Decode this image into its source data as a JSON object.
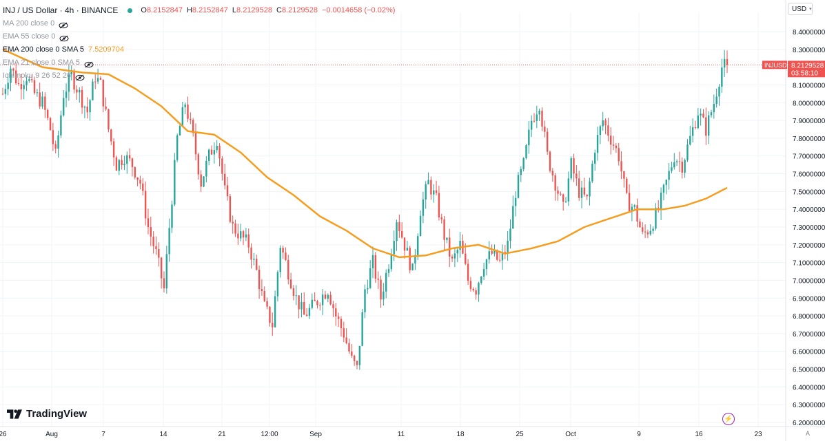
{
  "header": {
    "title": "INJ / US Dollar · 4h · BINANCE",
    "ohlc": [
      {
        "label": "O",
        "value": "8.2152847"
      },
      {
        "label": "H",
        "value": "8.2152847"
      },
      {
        "label": "L",
        "value": "8.2129528"
      },
      {
        "label": "C",
        "value": "8.2129528"
      }
    ],
    "change": "−0.0014658 (−0.02%)"
  },
  "indicators": [
    {
      "name": "MA 200 close 0",
      "value": "",
      "hidden": true
    },
    {
      "name": "EMA 55 close 0",
      "value": "",
      "hidden": true
    },
    {
      "name": "EMA 200 close 0 SMA 5",
      "value": "7.5209704",
      "hidden": false
    },
    {
      "name": "EMA 21 close 0 SMA 5",
      "value": "",
      "hidden": true
    },
    {
      "name": "Ichimoku 9 26 52 26",
      "value": "",
      "hidden": true
    }
  ],
  "currency_button": "USD",
  "brand": "TradingView",
  "auto_label": "A",
  "price_tag": {
    "symbol": "INJUSD",
    "price": "8.2129528",
    "countdown": "03:58:10"
  },
  "colors": {
    "up": "#26a69a",
    "down": "#ef5350",
    "ema": "#f59d1e",
    "tag": "#ef5350"
  },
  "chart_data": {
    "type": "candlestick",
    "ylim": [
      6.2,
      8.45
    ],
    "y_ticks": [
      "8.4000000",
      "8.3000000",
      "8.2000000",
      "8.1000000",
      "8.0000000",
      "7.9000000",
      "7.8000000",
      "7.7000000",
      "7.6000000",
      "7.5000000",
      "7.4000000",
      "7.3000000",
      "7.2000000",
      "7.1000000",
      "7.0000000",
      "6.9000000",
      "6.8000000",
      "6.7000000",
      "6.6000000",
      "6.5000000",
      "6.4000000",
      "6.3000000",
      "6.2000000"
    ],
    "x_ticks": [
      "26",
      "Aug",
      "7",
      "14",
      "21",
      "12:00",
      "Sep",
      "11",
      "18",
      "25",
      "Oct",
      "9",
      "16",
      "23"
    ],
    "last_price": 8.2129528,
    "price_path": [
      [
        0,
        8.05
      ],
      [
        3,
        8.2
      ],
      [
        6,
        8.1
      ],
      [
        9,
        8.15
      ],
      [
        12,
        8.05
      ],
      [
        15,
        8.0
      ],
      [
        18,
        7.85
      ],
      [
        20,
        7.7
      ],
      [
        23,
        8.05
      ],
      [
        26,
        8.15
      ],
      [
        29,
        8.05
      ],
      [
        32,
        7.95
      ],
      [
        35,
        8.15
      ],
      [
        37,
        8.1
      ],
      [
        40,
        7.85
      ],
      [
        43,
        7.65
      ],
      [
        46,
        7.7
      ],
      [
        49,
        7.65
      ],
      [
        52,
        7.55
      ],
      [
        55,
        7.3
      ],
      [
        58,
        7.15
      ],
      [
        61,
        6.95
      ],
      [
        63,
        7.3
      ],
      [
        66,
        7.8
      ],
      [
        69,
        8.0
      ],
      [
        72,
        7.8
      ],
      [
        75,
        7.55
      ],
      [
        78,
        7.7
      ],
      [
        81,
        7.8
      ],
      [
        84,
        7.5
      ],
      [
        87,
        7.3
      ],
      [
        90,
        7.25
      ],
      [
        93,
        7.2
      ],
      [
        96,
        7.05
      ],
      [
        99,
        6.85
      ],
      [
        102,
        6.75
      ],
      [
        105,
        7.2
      ],
      [
        108,
        7.05
      ],
      [
        111,
        6.9
      ],
      [
        114,
        6.8
      ],
      [
        117,
        6.85
      ],
      [
        120,
        6.9
      ],
      [
        123,
        6.95
      ],
      [
        126,
        6.8
      ],
      [
        129,
        6.7
      ],
      [
        132,
        6.55
      ],
      [
        134,
        6.5
      ],
      [
        137,
        6.95
      ],
      [
        140,
        7.1
      ],
      [
        143,
        6.9
      ],
      [
        146,
        7.1
      ],
      [
        149,
        7.35
      ],
      [
        152,
        7.2
      ],
      [
        155,
        7.05
      ],
      [
        158,
        7.4
      ],
      [
        161,
        7.55
      ],
      [
        164,
        7.45
      ],
      [
        167,
        7.25
      ],
      [
        170,
        7.1
      ],
      [
        173,
        7.2
      ],
      [
        176,
        7.0
      ],
      [
        179,
        6.95
      ],
      [
        182,
        7.1
      ],
      [
        185,
        7.15
      ],
      [
        188,
        7.1
      ],
      [
        191,
        7.2
      ],
      [
        194,
        7.5
      ],
      [
        197,
        7.65
      ],
      [
        200,
        7.9
      ],
      [
        203,
        8.0
      ],
      [
        206,
        7.7
      ],
      [
        209,
        7.55
      ],
      [
        212,
        7.4
      ],
      [
        215,
        7.65
      ],
      [
        218,
        7.5
      ],
      [
        221,
        7.45
      ],
      [
        224,
        7.75
      ],
      [
        227,
        7.9
      ],
      [
        230,
        7.8
      ],
      [
        233,
        7.7
      ],
      [
        236,
        7.45
      ],
      [
        239,
        7.4
      ],
      [
        242,
        7.25
      ],
      [
        245,
        7.3
      ],
      [
        248,
        7.4
      ],
      [
        251,
        7.55
      ],
      [
        254,
        7.7
      ],
      [
        257,
        7.65
      ],
      [
        260,
        7.8
      ],
      [
        263,
        7.95
      ],
      [
        266,
        7.85
      ],
      [
        269,
        8.0
      ],
      [
        272,
        8.2
      ],
      [
        274,
        8.2129528
      ]
    ],
    "ema_200": [
      [
        0,
        8.3
      ],
      [
        15,
        8.2
      ],
      [
        30,
        8.17
      ],
      [
        40,
        8.16
      ],
      [
        50,
        8.08
      ],
      [
        60,
        7.98
      ],
      [
        70,
        7.84
      ],
      [
        80,
        7.82
      ],
      [
        90,
        7.72
      ],
      [
        100,
        7.58
      ],
      [
        110,
        7.48
      ],
      [
        120,
        7.36
      ],
      [
        130,
        7.28
      ],
      [
        140,
        7.18
      ],
      [
        150,
        7.13
      ],
      [
        160,
        7.14
      ],
      [
        170,
        7.18
      ],
      [
        180,
        7.2
      ],
      [
        190,
        7.15
      ],
      [
        200,
        7.18
      ],
      [
        210,
        7.22
      ],
      [
        220,
        7.3
      ],
      [
        230,
        7.35
      ],
      [
        240,
        7.4
      ],
      [
        250,
        7.4
      ],
      [
        258,
        7.42
      ],
      [
        266,
        7.46
      ],
      [
        274,
        7.5209704
      ]
    ]
  }
}
